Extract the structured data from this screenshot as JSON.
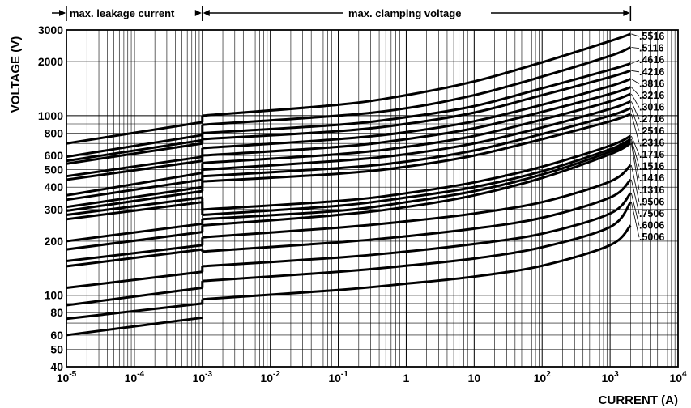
{
  "header": {
    "left_label": "max. leakage current",
    "right_label": "max. clamping voltage"
  },
  "chart_data": {
    "type": "line",
    "title": "",
    "xlabel": "CURRENT (A)",
    "ylabel": "VOLTAGE (V)",
    "x_scale": "log",
    "y_scale": "log",
    "xlim": [
      1e-05,
      10000
    ],
    "ylim": [
      40,
      3000
    ],
    "grid": true,
    "x_ticks": [
      {
        "value": 1e-05,
        "base": "10",
        "exp": "-5"
      },
      {
        "value": 0.0001,
        "base": "10",
        "exp": "-4"
      },
      {
        "value": 0.001,
        "base": "10",
        "exp": "-3"
      },
      {
        "value": 0.01,
        "base": "10",
        "exp": "-2"
      },
      {
        "value": 0.1,
        "base": "10",
        "exp": "-1"
      },
      {
        "value": 1,
        "base": "1",
        "exp": ""
      },
      {
        "value": 10,
        "base": "10",
        "exp": ""
      },
      {
        "value": 100,
        "base": "10",
        "exp": "2"
      },
      {
        "value": 1000,
        "base": "10",
        "exp": "3"
      },
      {
        "value": 10000,
        "base": "10",
        "exp": "4"
      }
    ],
    "y_ticks": [
      {
        "value": 3000,
        "label": "3000"
      },
      {
        "value": 2000,
        "label": "2000"
      },
      {
        "value": 1000,
        "label": "1000"
      },
      {
        "value": 800,
        "label": "800"
      },
      {
        "value": 600,
        "label": "600"
      },
      {
        "value": 500,
        "label": "500"
      },
      {
        "value": 400,
        "label": "400"
      },
      {
        "value": 300,
        "label": "300"
      },
      {
        "value": 200,
        "label": "200"
      },
      {
        "value": 100,
        "label": "100"
      },
      {
        "value": 80,
        "label": "80"
      },
      {
        "value": 60,
        "label": "60"
      },
      {
        "value": 50,
        "label": "50"
      },
      {
        "value": 40,
        "label": "40"
      }
    ],
    "series": [
      {
        "name": ".5516",
        "leakage": [
          [
            1e-05,
            700
          ],
          [
            0.001,
            920
          ]
        ],
        "clamping": [
          [
            0.001,
            1000
          ],
          [
            0.1,
            1150
          ],
          [
            1,
            1300
          ],
          [
            10,
            1550
          ],
          [
            100,
            1980
          ],
          [
            1000,
            2600
          ],
          [
            2000,
            2850
          ]
        ]
      },
      {
        "name": ".5116",
        "leakage": [
          [
            1e-05,
            590
          ],
          [
            0.001,
            780
          ]
        ],
        "clamping": [
          [
            0.001,
            890
          ],
          [
            0.1,
            1000
          ],
          [
            1,
            1100
          ],
          [
            10,
            1300
          ],
          [
            100,
            1650
          ],
          [
            1000,
            2150
          ],
          [
            2000,
            2400
          ]
        ]
      },
      {
        "name": ".4616",
        "leakage": [
          [
            1e-05,
            560
          ],
          [
            0.001,
            730
          ]
        ],
        "clamping": [
          [
            0.001,
            800
          ],
          [
            0.1,
            890
          ],
          [
            1,
            980
          ],
          [
            10,
            1130
          ],
          [
            100,
            1420
          ],
          [
            1000,
            1800
          ],
          [
            2000,
            1950
          ]
        ]
      },
      {
        "name": ".4216",
        "leakage": [
          [
            1e-05,
            540
          ],
          [
            0.001,
            700
          ]
        ],
        "clamping": [
          [
            0.001,
            740
          ],
          [
            0.1,
            820
          ],
          [
            1,
            900
          ],
          [
            10,
            1040
          ],
          [
            100,
            1300
          ],
          [
            1000,
            1640
          ],
          [
            2000,
            1780
          ]
        ]
      },
      {
        "name": ".3816",
        "leakage": [
          [
            1e-05,
            460
          ],
          [
            0.001,
            590
          ]
        ],
        "clamping": [
          [
            0.001,
            660
          ],
          [
            0.1,
            740
          ],
          [
            1,
            810
          ],
          [
            10,
            930
          ],
          [
            100,
            1150
          ],
          [
            1000,
            1460
          ],
          [
            2000,
            1600
          ]
        ]
      },
      {
        "name": ".3216",
        "leakage": [
          [
            1e-05,
            440
          ],
          [
            0.001,
            560
          ]
        ],
        "clamping": [
          [
            0.001,
            600
          ],
          [
            0.1,
            670
          ],
          [
            1,
            740
          ],
          [
            10,
            850
          ],
          [
            100,
            1050
          ],
          [
            1000,
            1320
          ],
          [
            2000,
            1440
          ]
        ]
      },
      {
        "name": ".3016",
        "leakage": [
          [
            1e-05,
            360
          ],
          [
            0.001,
            480
          ]
        ],
        "clamping": [
          [
            0.001,
            545
          ],
          [
            0.1,
            610
          ],
          [
            1,
            670
          ],
          [
            10,
            770
          ],
          [
            100,
            950
          ],
          [
            1000,
            1200
          ],
          [
            2000,
            1320
          ]
        ]
      },
      {
        "name": ".2716",
        "leakage": [
          [
            1e-05,
            340
          ],
          [
            0.001,
            440
          ]
        ],
        "clamping": [
          [
            0.001,
            500
          ],
          [
            0.1,
            560
          ],
          [
            1,
            610
          ],
          [
            10,
            700
          ],
          [
            100,
            860
          ],
          [
            1000,
            1090
          ],
          [
            2000,
            1200
          ]
        ]
      },
      {
        "name": ".2516",
        "leakage": [
          [
            1e-05,
            310
          ],
          [
            0.001,
            400
          ]
        ],
        "clamping": [
          [
            0.001,
            460
          ],
          [
            0.1,
            510
          ],
          [
            1,
            555
          ],
          [
            10,
            640
          ],
          [
            100,
            790
          ],
          [
            1000,
            1000
          ],
          [
            2000,
            1100
          ]
        ]
      },
      {
        "name": ".2316",
        "leakage": [
          [
            1e-05,
            295
          ],
          [
            0.001,
            380
          ]
        ],
        "clamping": [
          [
            0.001,
            430
          ],
          [
            0.1,
            475
          ],
          [
            1,
            520
          ],
          [
            10,
            600
          ],
          [
            100,
            740
          ],
          [
            1000,
            930
          ],
          [
            2000,
            1020
          ]
        ]
      },
      {
        "name": ".1716",
        "leakage": [
          [
            1e-05,
            280
          ],
          [
            0.001,
            350
          ]
        ],
        "clamping": [
          [
            0.001,
            300
          ],
          [
            0.1,
            335
          ],
          [
            1,
            370
          ],
          [
            10,
            425
          ],
          [
            100,
            520
          ],
          [
            1000,
            680
          ],
          [
            2000,
            770
          ]
        ]
      },
      {
        "name": ".1516",
        "leakage": [
          [
            1e-05,
            265
          ],
          [
            0.001,
            330
          ]
        ],
        "clamping": [
          [
            0.001,
            280
          ],
          [
            0.1,
            315
          ],
          [
            1,
            350
          ],
          [
            10,
            400
          ],
          [
            100,
            490
          ],
          [
            1000,
            650
          ],
          [
            2000,
            740
          ]
        ]
      },
      {
        "name": ".1416",
        "leakage": [
          [
            1e-05,
            200
          ],
          [
            0.001,
            250
          ]
        ],
        "clamping": [
          [
            0.001,
            265
          ],
          [
            0.1,
            295
          ],
          [
            1,
            330
          ],
          [
            10,
            380
          ],
          [
            100,
            470
          ],
          [
            1000,
            630
          ],
          [
            2000,
            720
          ]
        ]
      },
      {
        "name": ".1316",
        "leakage": [
          [
            1e-05,
            180
          ],
          [
            0.001,
            225
          ]
        ],
        "clamping": [
          [
            0.001,
            245
          ],
          [
            0.1,
            280
          ],
          [
            1,
            310
          ],
          [
            10,
            360
          ],
          [
            100,
            450
          ],
          [
            1000,
            610
          ],
          [
            2000,
            700
          ]
        ]
      },
      {
        "name": ".9506",
        "leakage": [
          [
            1e-05,
            155
          ],
          [
            0.001,
            190
          ]
        ],
        "clamping": [
          [
            0.001,
            210
          ],
          [
            0.1,
            238
          ],
          [
            1,
            258
          ],
          [
            10,
            285
          ],
          [
            100,
            330
          ],
          [
            1000,
            430
          ],
          [
            2000,
            530
          ]
        ]
      },
      {
        "name": ".7506",
        "leakage": [
          [
            1e-05,
            145
          ],
          [
            0.001,
            180
          ]
        ],
        "clamping": [
          [
            0.001,
            175
          ],
          [
            0.1,
            197
          ],
          [
            1,
            213
          ],
          [
            10,
            235
          ],
          [
            100,
            270
          ],
          [
            1000,
            350
          ],
          [
            2000,
            440
          ]
        ]
      },
      {
        "name": ".6006",
        "leakage": [
          [
            1e-05,
            110
          ],
          [
            0.001,
            135
          ]
        ],
        "clamping": [
          [
            0.001,
            145
          ],
          [
            0.1,
            162
          ],
          [
            1,
            175
          ],
          [
            10,
            193
          ],
          [
            100,
            220
          ],
          [
            1000,
            285
          ],
          [
            2000,
            370
          ]
        ]
      },
      {
        "name": ".5006",
        "leakage": [
          [
            1e-05,
            88
          ],
          [
            0.001,
            110
          ]
        ],
        "clamping": [
          [
            0.001,
            120
          ],
          [
            0.1,
            135
          ],
          [
            1,
            146
          ],
          [
            10,
            160
          ],
          [
            100,
            185
          ],
          [
            1000,
            240
          ],
          [
            2000,
            330
          ]
        ]
      },
      {
        "leakage": [
          [
            1e-05,
            74
          ],
          [
            0.001,
            90
          ]
        ],
        "clamping": [
          [
            0.001,
            95
          ],
          [
            0.1,
            107
          ],
          [
            1,
            116
          ],
          [
            10,
            127
          ],
          [
            100,
            146
          ],
          [
            1000,
            190
          ],
          [
            2000,
            245
          ]
        ]
      },
      {
        "leakage": [
          [
            1e-05,
            60
          ],
          [
            0.001,
            75
          ]
        ],
        "clamping": []
      }
    ]
  }
}
